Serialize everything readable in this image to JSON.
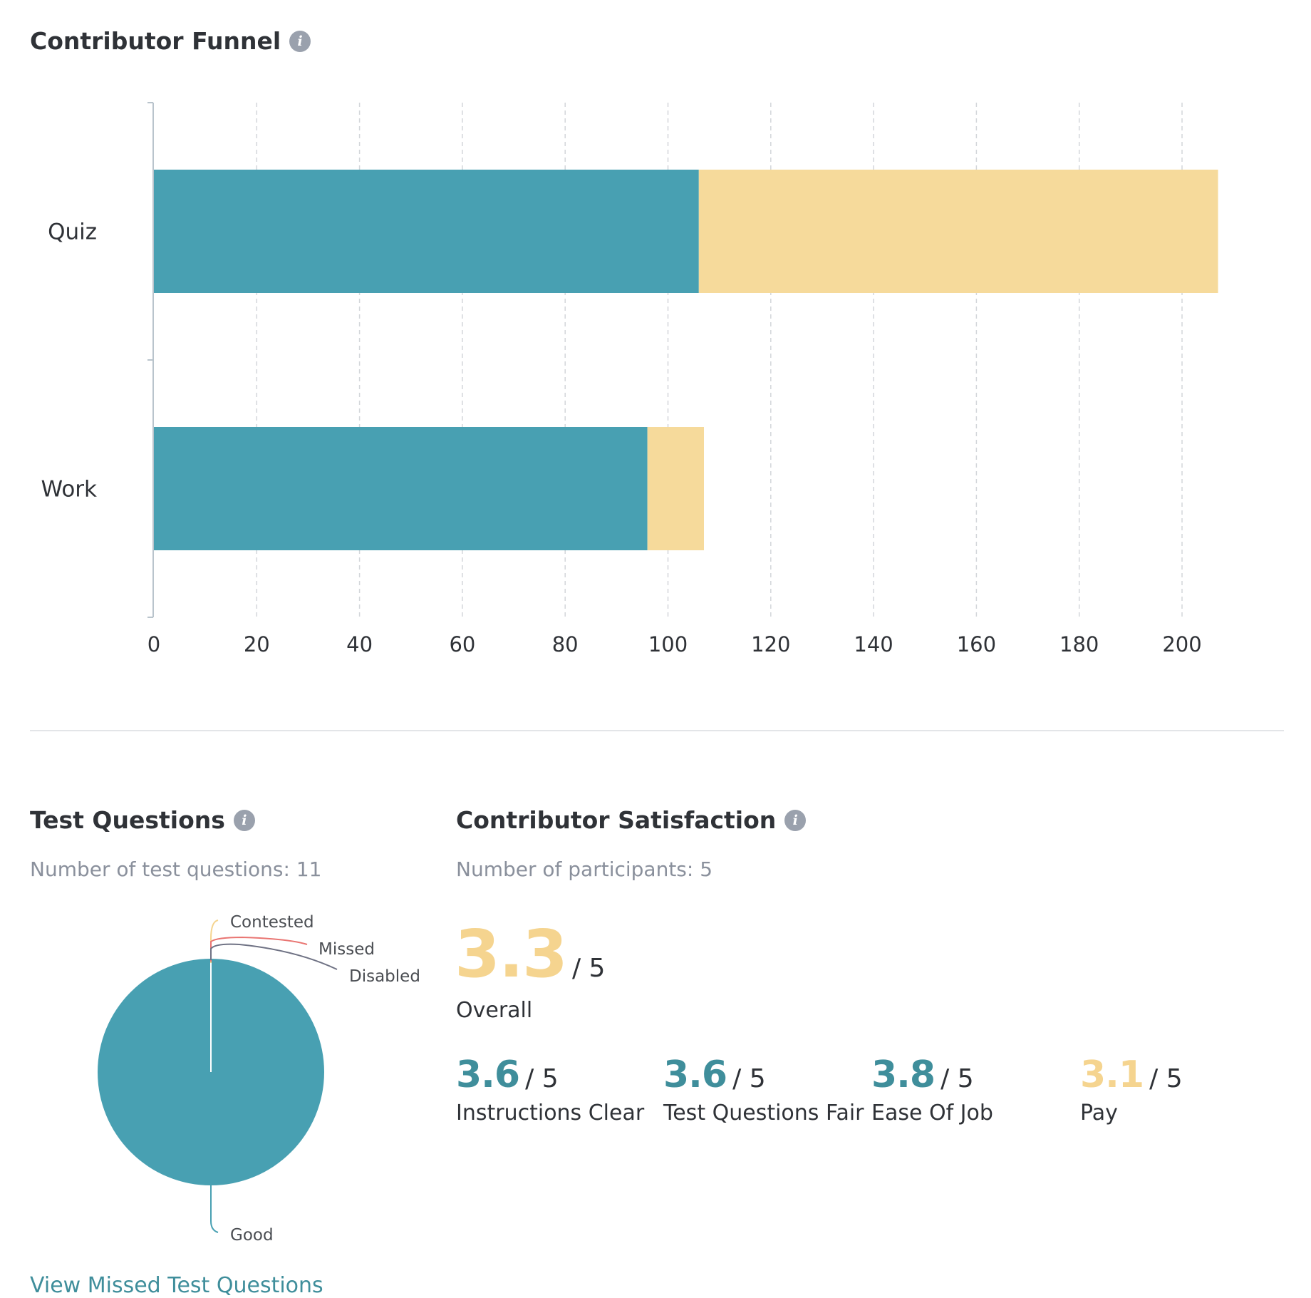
{
  "funnel": {
    "title": "Contributor Funnel",
    "info_icon": "info-icon"
  },
  "chart_data": [
    {
      "type": "bar",
      "orientation": "horizontal",
      "stacked": true,
      "categories": [
        "Quiz",
        "Work"
      ],
      "series": [
        {
          "values": [
            106,
            96
          ],
          "color": "#48a0b2"
        },
        {
          "values": [
            101,
            11
          ],
          "color": "#f6da9b"
        }
      ],
      "xticks": [
        "0",
        "20",
        "40",
        "60",
        "80",
        "100",
        "120",
        "140",
        "160",
        "180",
        "200"
      ],
      "xlim": [
        0,
        200
      ],
      "grid": "vertical-dashed",
      "legend": "none"
    },
    {
      "type": "pie",
      "labels": [
        "Good",
        "Contested",
        "Missed",
        "Disabled"
      ],
      "values": [
        11,
        0,
        0,
        0
      ],
      "colors": [
        "#48a0b2",
        "#f5d48f",
        "#e97572",
        "#6f7284"
      ],
      "legend": "none"
    }
  ],
  "test_questions": {
    "title": "Test Questions",
    "info_icon": "info-icon",
    "count_text": "Number of test questions: 11",
    "link": "View Missed Test Questions"
  },
  "satisfaction": {
    "title": "Contributor Satisfaction",
    "info_icon": "info-icon",
    "participants_text": "Number of participants: 5",
    "overall": {
      "value": "3.3",
      "denominator": "/ 5",
      "label": "Overall",
      "color": "#f5d48f"
    },
    "metrics": [
      {
        "value": "3.6",
        "denominator": "/ 5",
        "label": "Instructions Clear",
        "color": "#3f8e9b"
      },
      {
        "value": "3.6",
        "denominator": "/ 5",
        "label": "Test Questions Fair",
        "color": "#3f8e9b"
      },
      {
        "value": "3.8",
        "denominator": "/ 5",
        "label": "Ease Of Job",
        "color": "#3f8e9b"
      },
      {
        "value": "3.1",
        "denominator": "/ 5",
        "label": "Pay",
        "color": "#f5d48f"
      }
    ]
  }
}
